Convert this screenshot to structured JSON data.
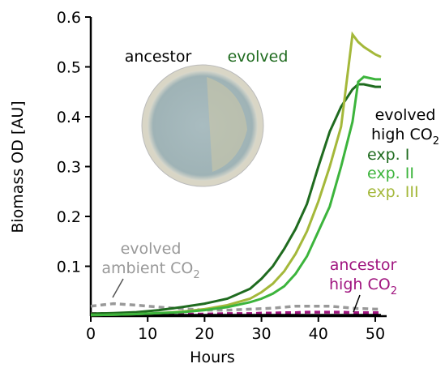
{
  "chart_data": {
    "type": "line",
    "xlabel": "Hours",
    "ylabel": "Biomass OD [AU]",
    "xlim": [
      0,
      52
    ],
    "ylim": [
      0,
      0.6
    ],
    "xticks": [
      0,
      10,
      20,
      30,
      40,
      50
    ],
    "yticks": [
      0.1,
      0.2,
      0.3,
      0.4,
      0.5,
      0.6
    ],
    "x": [
      0,
      4,
      8,
      12,
      16,
      20,
      24,
      28,
      30,
      32,
      34,
      36,
      38,
      40,
      42,
      44,
      46,
      47,
      48,
      50,
      51
    ],
    "series": [
      {
        "name": "exp. I",
        "color": "#1f6b1f",
        "dash": false,
        "values": [
          0.005,
          0.006,
          0.008,
          0.012,
          0.018,
          0.025,
          0.035,
          0.055,
          0.075,
          0.1,
          0.135,
          0.175,
          0.225,
          0.3,
          0.37,
          0.42,
          0.455,
          0.465,
          0.465,
          0.46,
          0.46
        ]
      },
      {
        "name": "exp. II",
        "color": "#3cb43c",
        "dash": false,
        "values": [
          0.002,
          0.003,
          0.004,
          0.006,
          0.008,
          0.012,
          0.018,
          0.028,
          0.035,
          0.045,
          0.06,
          0.085,
          0.12,
          0.17,
          0.22,
          0.3,
          0.39,
          0.47,
          0.48,
          0.475,
          0.475
        ]
      },
      {
        "name": "exp. III",
        "color": "#a4b83a",
        "dash": false,
        "values": [
          0.002,
          0.003,
          0.004,
          0.006,
          0.009,
          0.014,
          0.022,
          0.035,
          0.048,
          0.065,
          0.09,
          0.125,
          0.17,
          0.23,
          0.3,
          0.38,
          0.565,
          0.55,
          0.54,
          0.525,
          0.52
        ]
      },
      {
        "color": "#999999",
        "dash": true,
        "values": [
          0.02,
          0.025,
          0.022,
          0.018,
          0.015,
          0.012,
          0.012,
          0.014,
          0.015,
          0.016,
          0.018,
          0.02,
          0.02,
          0.02,
          0.02,
          0.018,
          0.016,
          0.015,
          0.015,
          0.014,
          0.014
        ]
      },
      {
        "color": "#a0157f",
        "dash": true,
        "values": [
          0.005,
          0.005,
          0.004,
          0.004,
          0.004,
          0.004,
          0.005,
          0.005,
          0.006,
          0.006,
          0.007,
          0.007,
          0.008,
          0.008,
          0.008,
          0.008,
          0.007,
          0.007,
          0.007,
          0.007,
          0.007
        ]
      },
      {
        "color": "#000000",
        "dash": false,
        "values": [
          0.002,
          0.002,
          0.002,
          0.002,
          0.002,
          0.002,
          0.002,
          0.002,
          0.002,
          0.002,
          0.002,
          0.002,
          0.002,
          0.002,
          0.002,
          0.002,
          0.002,
          0.002,
          0.002,
          0.002,
          0.002
        ]
      }
    ],
    "annotations": [
      {
        "text": "ancestor",
        "color": "#000000"
      },
      {
        "text": "evolved",
        "color": "#1f6b1f"
      },
      {
        "lines": [
          "evolved",
          "high CO"
        ],
        "sub": "2",
        "color": "#000000"
      },
      {
        "lines": [
          "evolved",
          "ambient CO"
        ],
        "sub": "2",
        "color": "#999999"
      },
      {
        "lines": [
          "ancestor",
          "high CO"
        ],
        "sub": "2",
        "color": "#a0157f"
      }
    ]
  }
}
